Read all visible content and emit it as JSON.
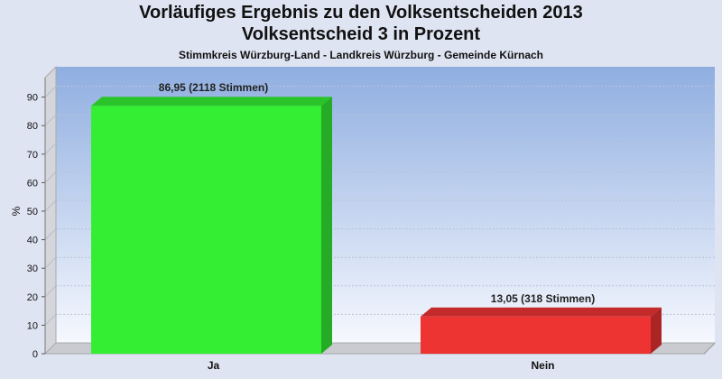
{
  "title_line1": "Vorläufiges Ergebnis zu den Volksentscheiden 2013",
  "title_line2": "Volksentscheid 3 in Prozent",
  "subtitle": "Stimmkreis Würzburg-Land - Landkreis Würzburg - Gemeinde Kürnach",
  "chart_data": {
    "type": "bar",
    "categories": [
      "Ja",
      "Nein"
    ],
    "values": [
      86.95,
      13.05
    ],
    "data_labels": [
      "86,95 (2118 Stimmen)",
      "13,05 (318 Stimmen)"
    ],
    "colors": [
      "#33ee33",
      "#ee3333"
    ],
    "ylabel": "%",
    "ylim": [
      0,
      100
    ],
    "yticks": [
      0,
      10,
      20,
      30,
      40,
      50,
      60,
      70,
      80,
      90
    ],
    "grid": true,
    "legend": "none"
  }
}
